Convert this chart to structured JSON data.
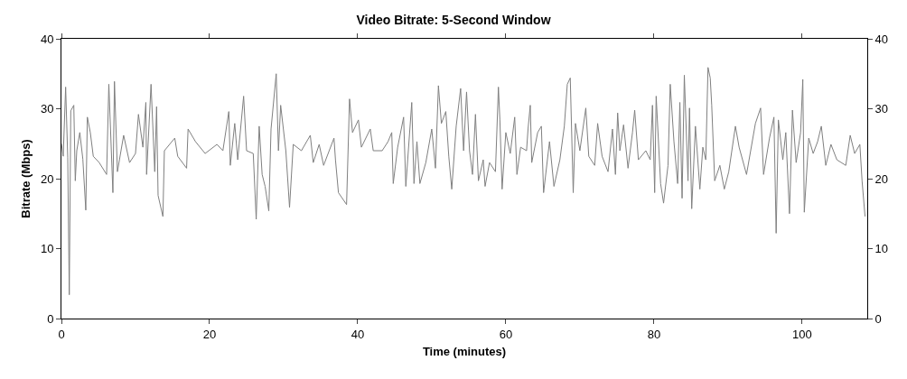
{
  "chart_data": {
    "type": "line",
    "title": "Video Bitrate: 5-Second Window",
    "xlabel": "Time (minutes)",
    "ylabel": "Bitrate (Mbps)",
    "xlim": [
      0,
      108.8
    ],
    "xticks": [
      0,
      20,
      40,
      60,
      80,
      100
    ],
    "ylim": [
      0,
      40
    ],
    "yticks": [
      0,
      10,
      20,
      30,
      40
    ],
    "y2lim": [
      0,
      40
    ],
    "y2ticks": [
      0,
      10,
      20,
      30,
      40
    ],
    "grid": false,
    "marker": "none",
    "line_style": "solid",
    "series": [
      {
        "color": "#808080",
        "x": [
          0,
          0.24,
          0.57,
          0.85,
          1.06,
          1.26,
          1.67,
          1.87,
          2.07,
          2.48,
          2.89,
          3.29,
          3.5,
          3.9,
          4.3,
          5.1,
          6.1,
          6.4,
          6.95,
          7.16,
          7.56,
          8.4,
          9.2,
          10,
          10.4,
          11,
          11.4,
          11.5,
          12.1,
          12.6,
          12.85,
          13.05,
          13.7,
          13.9,
          15.3,
          15.7,
          16.9,
          17.1,
          18.1,
          19.4,
          21,
          21.8,
          22.6,
          22.8,
          23.4,
          23.8,
          24.6,
          25.0,
          25.9,
          26.3,
          26.7,
          27.1,
          27.5,
          28.0,
          28.3,
          29.0,
          29.3,
          29.6,
          30.3,
          30.8,
          31.3,
          32.4,
          33.6,
          34.0,
          34.8,
          35.4,
          36.8,
          37.0,
          37.4,
          38.5,
          38.9,
          39.3,
          40.1,
          40.5,
          41.7,
          42.1,
          43.3,
          44.1,
          44.6,
          44.8,
          45.4,
          46.2,
          46.5,
          47.3,
          47.6,
          48.0,
          48.4,
          49.2,
          50.0,
          50.5,
          50.9,
          51.3,
          51.9,
          52.3,
          52.7,
          53.3,
          53.9,
          54.3,
          54.7,
          55.1,
          55.5,
          55.9,
          56.3,
          56.95,
          57.2,
          57.8,
          58.6,
          59.0,
          59.2,
          59.5,
          60.0,
          60.6,
          61.2,
          61.5,
          62.0,
          62.8,
          63.0,
          63.3,
          63.5,
          64.3,
          64.8,
          65.1,
          65.9,
          66.5,
          67.3,
          67.9,
          68.3,
          68.7,
          69.1,
          69.4,
          70.0,
          70.8,
          71.2,
          72.0,
          72.4,
          73.0,
          73.8,
          74.4,
          74.8,
          75.1,
          75.4,
          75.9,
          76.5,
          77.1,
          77.4,
          77.9,
          78.9,
          79.5,
          79.8,
          80.1,
          80.3,
          80.9,
          81.3,
          81.9,
          82.2,
          82.7,
          83.2,
          83.5,
          83.8,
          84.1,
          84.6,
          84.8,
          85.1,
          85.6,
          86.2,
          86.6,
          87.0,
          87.3,
          87.6,
          87.8,
          88.2,
          88.9,
          89.5,
          90.1,
          91.0,
          91.5,
          92.5,
          93.7,
          94.4,
          94.8,
          95.6,
          96.2,
          96.5,
          96.8,
          97.4,
          97.8,
          98.3,
          98.7,
          99.2,
          99.8,
          100.1,
          100.3,
          100.9,
          101.5,
          102.1,
          102.6,
          103.2,
          103.9,
          104.7,
          105.9,
          106.5,
          107.1,
          107.8,
          108.1,
          108.5
        ],
        "values": [
          25,
          23.2,
          33.1,
          23,
          3.4,
          29.7,
          30.5,
          19.7,
          24,
          26.6,
          22.8,
          15.5,
          28.8,
          26.6,
          23.2,
          22.3,
          20.6,
          33.5,
          18,
          33.9,
          21,
          26.2,
          22.3,
          23.6,
          29.2,
          24.5,
          30.9,
          20.6,
          33.5,
          21,
          30.3,
          17.6,
          14.6,
          24,
          25.8,
          23.2,
          21.5,
          27.1,
          25.3,
          23.6,
          24.9,
          24,
          29.6,
          21.9,
          27.9,
          22.7,
          31.8,
          24,
          23.6,
          14.2,
          27.5,
          20.6,
          18.9,
          15.4,
          27.1,
          35.0,
          24,
          30.5,
          24,
          15.9,
          24.9,
          24,
          26.2,
          22.3,
          24.9,
          21.9,
          25.8,
          22.7,
          18,
          16.3,
          31.4,
          26.6,
          28.4,
          24.5,
          27.1,
          24,
          24,
          25.3,
          26.6,
          19.3,
          24.5,
          28.8,
          18.9,
          30.9,
          19.3,
          25.3,
          19.3,
          22.3,
          27.1,
          21.5,
          33.3,
          27.9,
          29.6,
          23.2,
          18.5,
          27.5,
          32.9,
          24,
          32.4,
          24,
          20.6,
          29.2,
          19.7,
          22.7,
          18.9,
          22.3,
          21,
          33.1,
          28.4,
          18.5,
          26.6,
          23.6,
          28.8,
          20.6,
          24.5,
          24,
          27.1,
          30.5,
          22.3,
          26.6,
          27.5,
          18,
          25.3,
          18.9,
          22.7,
          27.5,
          33.5,
          34.4,
          18,
          27.9,
          24,
          30.1,
          23.2,
          21.9,
          27.9,
          23.2,
          21,
          27.1,
          20.6,
          29.4,
          24,
          27.7,
          21.5,
          26.6,
          29.8,
          22.7,
          24,
          22.7,
          30.5,
          18,
          31.8,
          19.3,
          16.5,
          21.9,
          33.5,
          25.3,
          19.3,
          30.9,
          17.2,
          34.8,
          19.7,
          30.1,
          15.7,
          27.5,
          18.5,
          24.5,
          22.7,
          35.9,
          34.4,
          30.5,
          19.7,
          21.9,
          18.5,
          21,
          27.5,
          24.5,
          20.6,
          27.9,
          30.1,
          20.6,
          25.8,
          28.8,
          12.2,
          28.4,
          22.7,
          26.6,
          15.0,
          29.8,
          22.3,
          26.6,
          34.2,
          15.2,
          25.8,
          23.6,
          25.3,
          27.5,
          21.9,
          24.9,
          22.7,
          21.9,
          26.2,
          23.6,
          24.9,
          19.7,
          14.6
        ]
      }
    ]
  }
}
